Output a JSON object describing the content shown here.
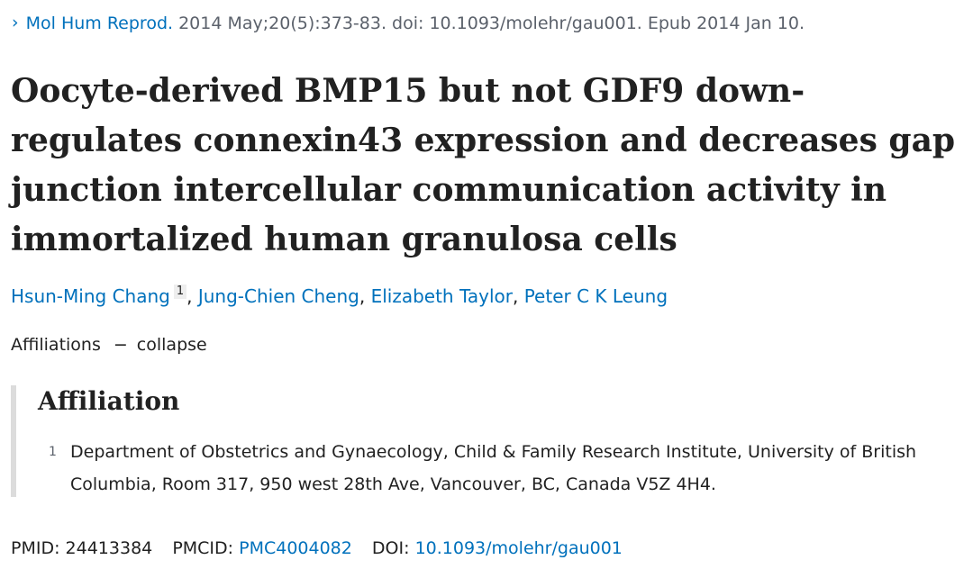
{
  "citation": {
    "chevron": "›",
    "journal": "Mol Hum Reprod.",
    "details": "2014 May;20(5):373-83. doi: 10.1093/molehr/gau001. Epub 2014 Jan 10."
  },
  "title": "Oocyte-derived BMP15 but not GDF9 down-regulates connexin43 expression and decreases gap junction intercellular communication activity in immortalized human granulosa cells",
  "authors": [
    {
      "name": "Hsun-Ming Chang",
      "affiliation_ref": "1"
    },
    {
      "name": "Jung-Chien Cheng"
    },
    {
      "name": "Elizabeth Taylor"
    },
    {
      "name": "Peter C K Leung"
    }
  ],
  "author_separator": ",",
  "affiliations_toggle": {
    "label": "Affiliations",
    "dash": "−",
    "action": "collapse"
  },
  "affiliation_box": {
    "heading": "Affiliation",
    "items": [
      {
        "number": "1",
        "text": "Department of Obstetrics and Gynaecology, Child & Family Research Institute, University of British Columbia, Room 317, 950 west 28th Ave, Vancouver, BC, Canada V5Z 4H4."
      }
    ]
  },
  "identifiers": {
    "pmid_label": "PMID:",
    "pmid": "24413384",
    "pmcid_label": "PMCID:",
    "pmcid": "PMC4004082",
    "doi_label": "DOI:",
    "doi": "10.1093/molehr/gau001"
  },
  "colors": {
    "link": "#0071bc",
    "text": "#212121",
    "muted": "#5b616b",
    "affiliation_border": "#dcdcdc"
  }
}
